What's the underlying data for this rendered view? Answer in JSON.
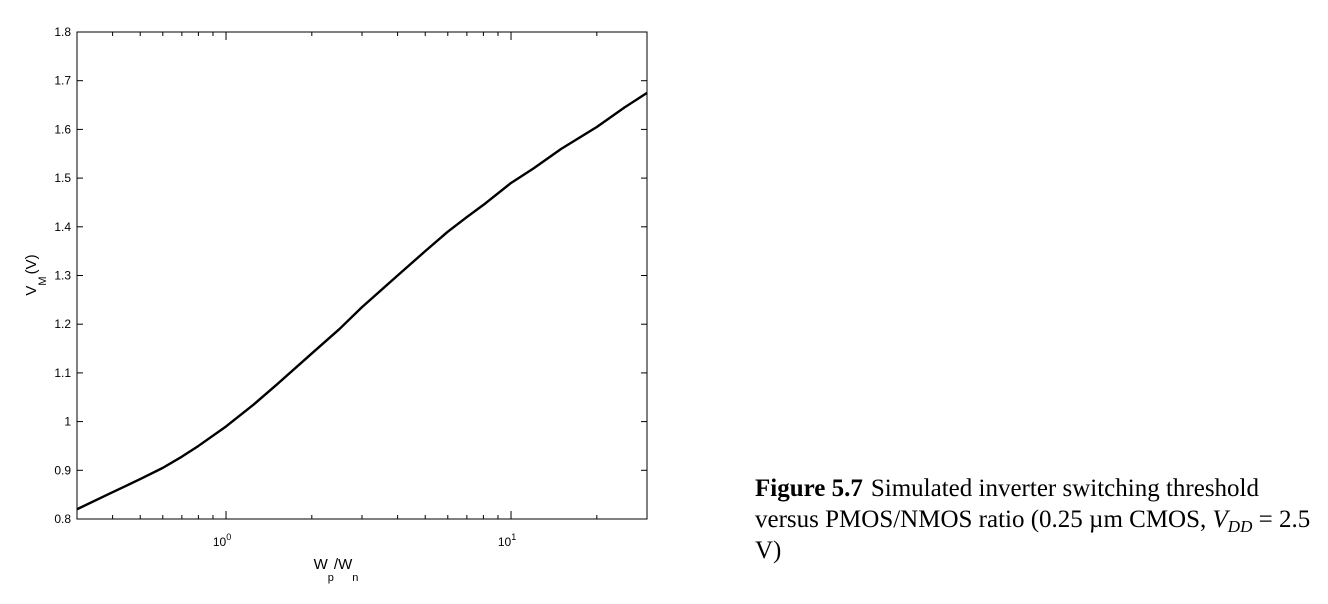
{
  "chart_data": {
    "type": "line",
    "x_scale": "log",
    "xlim": [
      0.3,
      30
    ],
    "ylim": [
      0.8,
      1.8
    ],
    "x_tick_labels": [
      {
        "base": "10",
        "exp": "0",
        "value": 1
      },
      {
        "base": "10",
        "exp": "1",
        "value": 10
      }
    ],
    "y_ticks": [
      0.8,
      0.9,
      1.0,
      1.1,
      1.2,
      1.3,
      1.4,
      1.5,
      1.6,
      1.7,
      1.8
    ],
    "y_tick_labels": [
      "0.8",
      "0.9",
      "1",
      "1.1",
      "1.2",
      "1.3",
      "1.4",
      "1.5",
      "1.6",
      "1.7",
      "1.8"
    ],
    "xlabel": {
      "main": "W",
      "sub1": "p",
      "mid": "/W",
      "sub2": "n"
    },
    "ylabel": {
      "main": "V",
      "sub": "M",
      "unit": "(V)"
    },
    "grid": false,
    "series": [
      {
        "x": [
          0.3,
          0.4,
          0.5,
          0.6,
          0.7,
          0.8,
          1.0,
          1.25,
          1.5,
          2.0,
          2.5,
          3.0,
          4.0,
          5.0,
          6.0,
          7.0,
          8.0,
          10.0,
          12.0,
          15.0,
          20.0,
          25.0,
          30.0
        ],
        "y": [
          0.82,
          0.855,
          0.882,
          0.905,
          0.928,
          0.95,
          0.99,
          1.035,
          1.075,
          1.14,
          1.19,
          1.235,
          1.3,
          1.35,
          1.39,
          1.42,
          1.445,
          1.49,
          1.52,
          1.56,
          1.605,
          1.645,
          1.675
        ]
      }
    ]
  },
  "caption": {
    "figure_label": "Figure 5.7",
    "text_before": "Simulated inverter switching threshold versus PMOS/NMOS ratio (0.25 µm CMOS, ",
    "vdd_main": "V",
    "vdd_sub": "DD",
    "text_after": " = 2.5 V)"
  }
}
